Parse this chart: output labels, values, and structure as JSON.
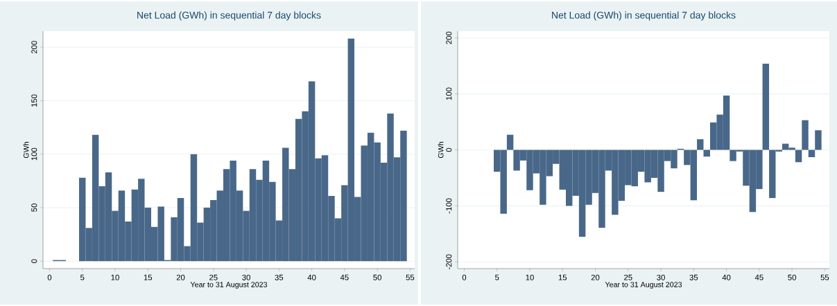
{
  "chart_data": [
    {
      "type": "bar",
      "title": "Net Load (GWh) in sequential 7 day blocks",
      "xlabel": "Year to 31 August 2023",
      "ylabel": "GWh",
      "color": "#496889",
      "grid": "y",
      "x": [
        1,
        2,
        3,
        4,
        5,
        6,
        7,
        8,
        9,
        10,
        11,
        12,
        13,
        14,
        15,
        16,
        17,
        18,
        19,
        20,
        21,
        22,
        23,
        24,
        25,
        26,
        27,
        28,
        29,
        30,
        31,
        32,
        33,
        34,
        35,
        36,
        37,
        38,
        39,
        40,
        41,
        42,
        43,
        44,
        45,
        46,
        47,
        48,
        49,
        50,
        51,
        52,
        53,
        54
      ],
      "values": [
        1,
        1,
        null,
        null,
        78,
        31,
        118,
        70,
        83,
        47,
        66,
        37,
        67,
        77,
        50,
        32,
        51,
        1,
        41,
        59,
        14,
        100,
        36,
        50,
        57,
        66,
        86,
        94,
        66,
        47,
        86,
        76,
        94,
        74,
        38,
        106,
        86,
        133,
        140,
        168,
        96,
        99,
        61,
        40,
        71,
        208,
        60,
        108,
        120,
        111,
        92,
        138,
        97,
        122
      ],
      "xlim": [
        -1,
        55.7
      ],
      "ylim": [
        -7,
        215
      ],
      "xticks": [
        0,
        5,
        10,
        15,
        20,
        25,
        30,
        35,
        40,
        45,
        50,
        55
      ],
      "yticks": [
        0,
        50,
        100,
        150,
        200
      ]
    },
    {
      "type": "bar",
      "title": "Net Load (GWh) in sequential 7 day blocks",
      "xlabel": "Year to 31 August 2023",
      "ylabel": "GWh",
      "color": "#496889",
      "grid": "y",
      "x": [
        5,
        6,
        7,
        8,
        9,
        10,
        11,
        12,
        13,
        14,
        15,
        16,
        17,
        18,
        19,
        20,
        21,
        22,
        23,
        24,
        25,
        26,
        27,
        28,
        29,
        30,
        31,
        32,
        33,
        34,
        35,
        36,
        37,
        38,
        39,
        40,
        41,
        42,
        43,
        44,
        45,
        46,
        47,
        48,
        49,
        50,
        51,
        52,
        53,
        54
      ],
      "values": [
        -39,
        -114,
        27,
        -37,
        -19,
        -72,
        -42,
        -98,
        -47,
        -25,
        -71,
        -100,
        -82,
        -155,
        -98,
        -77,
        -139,
        -37,
        -116,
        -91,
        -63,
        -65,
        -39,
        -58,
        -50,
        -75,
        -20,
        -33,
        2,
        -27,
        -90,
        19,
        -12,
        49,
        63,
        97,
        -20,
        -3,
        -64,
        -111,
        -70,
        154,
        -86,
        -3,
        11,
        4,
        -22,
        53,
        -13,
        35
      ],
      "xlim": [
        -1,
        55.7
      ],
      "ylim": [
        -212,
        212
      ],
      "xticks": [
        0,
        5,
        10,
        15,
        20,
        25,
        30,
        35,
        40,
        45,
        50,
        55
      ],
      "yticks": [
        -200,
        -100,
        0,
        100,
        200
      ]
    }
  ]
}
